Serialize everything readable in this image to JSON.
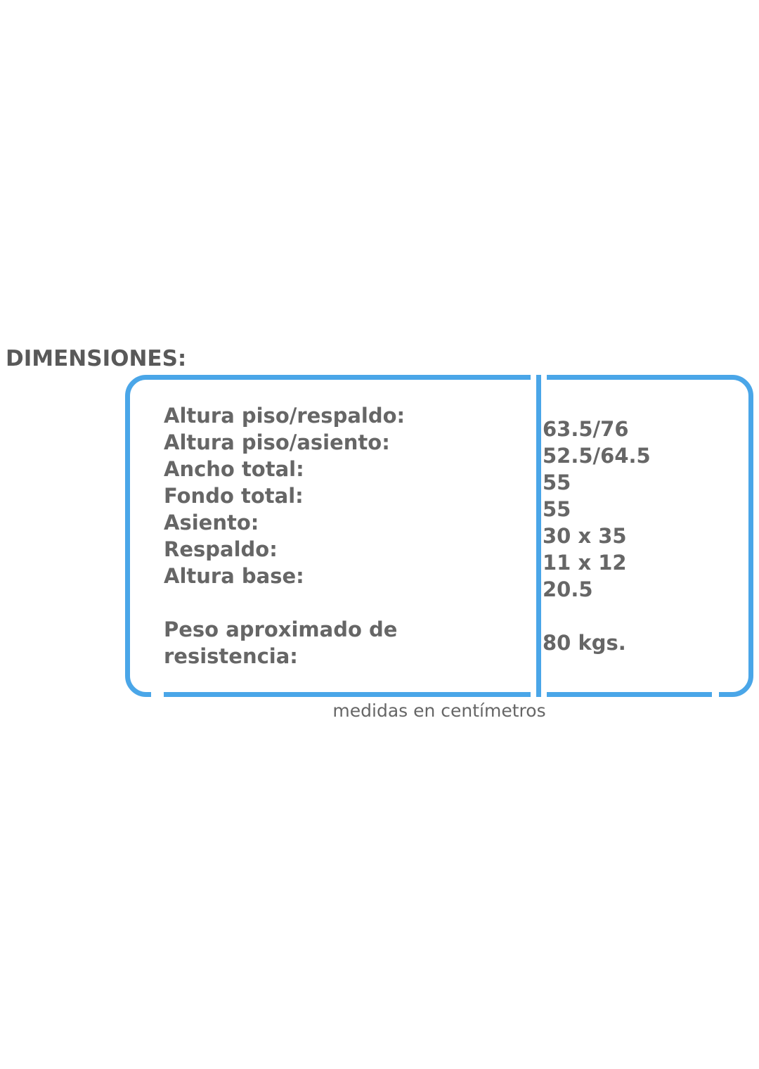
{
  "heading": "DIMENSIONES:",
  "table": {
    "caption": "medidas en centímetros",
    "label_lines": [
      "Altura piso/respaldo:",
      "Altura piso/asiento:",
      "Ancho total:",
      "Fondo total:",
      "Asiento:",
      "Respaldo:",
      "Altura base:",
      "",
      "Peso aproximado de",
      "resistencia:"
    ],
    "value_lines": [
      "63.5/76",
      "52.5/64.5",
      "55",
      "55",
      "30 x 35",
      "11 x 12",
      "20.5",
      "",
      "80 kgs."
    ]
  },
  "colors": {
    "accent_blue": "#4aa6e8",
    "heading_gray": "#595959",
    "text_gray": "#666666"
  }
}
